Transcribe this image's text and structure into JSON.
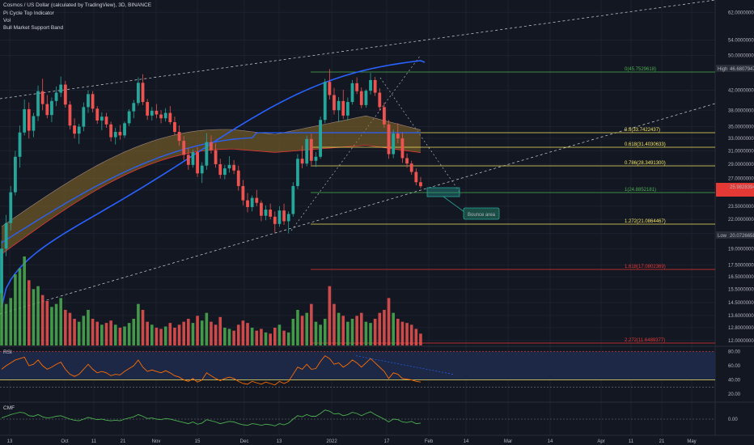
{
  "header": {
    "title": "Cosmos / US Dollar (calculated by TradingView), 3D, BINANCE",
    "indicators": [
      "Pi Cycle Top Indicator",
      "Vol",
      "Bull Market Support Band"
    ]
  },
  "panes": {
    "rsi_label": "RSI",
    "cmf_label": "CMF"
  },
  "colors": {
    "background": "#131722",
    "up": "#26a69a",
    "up_bright": "#4caf50",
    "down": "#ef5350",
    "ma_blue": "#2962ff",
    "band_fill": "#8d6e2a",
    "fib_yellow": "#f5e663",
    "fib_green": "#4caf50",
    "fib_red": "#e53935",
    "rsi_line": "#ff6d00",
    "cmf_line": "#4caf50",
    "rsi_band": "#1e2a4a"
  },
  "chart_data": {
    "type": "candlestick",
    "symbol": "ATOMUSD",
    "y_scale": "log",
    "ylim": [
      11.7,
      66
    ],
    "x_axis_labels": [
      "13",
      "Oct",
      "11",
      "21",
      "Nov",
      "15",
      "Dec",
      "13",
      "2022",
      "17",
      "Feb",
      "14",
      "Mar",
      "14",
      "Apr",
      "11",
      "21",
      "May"
    ],
    "y_axis_labels": [
      "62.0000000",
      "54.0000000",
      "50.0000000",
      "42.0000000",
      "38.0000000",
      "35.0000000",
      "33.0000000",
      "31.0000000",
      "29.0000000",
      "27.0000000",
      "25.5000000",
      "23.5000000",
      "22.0000000",
      "20.5000000",
      "19.0000000",
      "17.5000000",
      "16.5000000",
      "15.5000000",
      "14.5000000",
      "13.6000000",
      "12.8000000",
      "12.0000000"
    ],
    "price_tags": [
      {
        "label": "High",
        "value": "46.6807947"
      },
      {
        "label": "",
        "value": "25.9828394"
      },
      {
        "label": "Low",
        "value": "20.0726658"
      }
    ],
    "fib_levels": [
      {
        "ratio": "0",
        "price": "45.7529618",
        "label": "0(45.7529618)"
      },
      {
        "ratio": "0.5",
        "price": "33.7422437",
        "label": "0.5(33.7422437)"
      },
      {
        "ratio": "0.618",
        "price": "31.4030633",
        "label": "0.618(31.4030633)"
      },
      {
        "ratio": "0.786",
        "price": "28.3491300",
        "label": "0.786(28.3491300)"
      },
      {
        "ratio": "1",
        "price": "24.8852181",
        "label": "1(24.8852181)"
      },
      {
        "ratio": "1.272",
        "price": "21.0864467",
        "label": "1.272(21.0864467)"
      },
      {
        "ratio": "1.618",
        "price": "17.0802369",
        "label": "1.618(17.0802369)"
      },
      {
        "ratio": "2.272",
        "price": "11.6489377",
        "label": "2.272(11.6489377)"
      }
    ],
    "annotation": "Bounce area",
    "rsi_axis_labels": [
      "80.00",
      "60.00",
      "40.00",
      "20.00"
    ],
    "cmf_axis_labels": [
      "0.00"
    ],
    "candles": [
      [
        15.2,
        19.8,
        14.5,
        19.0
      ],
      [
        19.0,
        22.5,
        18.3,
        21.6
      ],
      [
        21.6,
        26.0,
        20.8,
        25.2
      ],
      [
        25.2,
        31.0,
        24.8,
        30.1
      ],
      [
        30.1,
        35.2,
        28.5,
        34.0
      ],
      [
        34.0,
        40.1,
        33.5,
        38.2
      ],
      [
        38.2,
        39.5,
        33.0,
        34.3
      ],
      [
        34.3,
        37.5,
        33.2,
        36.9
      ],
      [
        36.9,
        43.0,
        36.0,
        41.8
      ],
      [
        41.8,
        44.5,
        38.0,
        39.2
      ],
      [
        39.2,
        41.0,
        36.5,
        37.1
      ],
      [
        37.1,
        40.5,
        35.8,
        39.8
      ],
      [
        39.8,
        42.8,
        38.8,
        41.5
      ],
      [
        41.5,
        45.0,
        40.6,
        43.2
      ],
      [
        43.2,
        44.0,
        38.5,
        39.1
      ],
      [
        39.1,
        39.8,
        34.5,
        35.2
      ],
      [
        35.2,
        36.5,
        33.0,
        33.8
      ],
      [
        33.8,
        35.5,
        32.1,
        35.0
      ],
      [
        35.0,
        39.5,
        34.2,
        38.6
      ],
      [
        38.6,
        42.0,
        37.5,
        41.2
      ],
      [
        41.2,
        41.8,
        37.6,
        38.3
      ],
      [
        38.3,
        38.8,
        35.5,
        36.1
      ],
      [
        36.1,
        37.6,
        34.4,
        36.8
      ],
      [
        36.8,
        37.5,
        34.8,
        35.4
      ],
      [
        35.4,
        35.9,
        32.5,
        33.2
      ],
      [
        33.2,
        34.8,
        32.0,
        34.1
      ],
      [
        34.1,
        35.3,
        32.8,
        33.5
      ],
      [
        33.5,
        35.9,
        33.1,
        35.6
      ],
      [
        35.6,
        38.2,
        35.1,
        37.8
      ],
      [
        37.8,
        40.0,
        36.5,
        39.4
      ],
      [
        39.4,
        44.8,
        38.9,
        43.6
      ],
      [
        43.6,
        45.5,
        39.0,
        39.6
      ],
      [
        39.6,
        40.2,
        36.2,
        37.0
      ],
      [
        37.0,
        38.6,
        36.1,
        37.9
      ],
      [
        37.9,
        39.2,
        36.5,
        37.2
      ],
      [
        37.2,
        38.0,
        35.6,
        36.5
      ],
      [
        36.5,
        38.4,
        35.9,
        37.5
      ],
      [
        37.5,
        38.8,
        35.4,
        35.8
      ],
      [
        35.8,
        36.8,
        33.5,
        34.1
      ],
      [
        34.1,
        35.2,
        31.8,
        32.6
      ],
      [
        32.6,
        33.4,
        29.6,
        30.4
      ],
      [
        30.4,
        31.5,
        28.2,
        28.9
      ],
      [
        28.9,
        31.2,
        28.5,
        30.8
      ],
      [
        30.8,
        31.6,
        27.2,
        27.7
      ],
      [
        27.7,
        29.3,
        26.4,
        28.8
      ],
      [
        28.8,
        33.9,
        28.2,
        32.4
      ],
      [
        32.4,
        33.5,
        30.6,
        31.1
      ],
      [
        31.1,
        32.2,
        28.5,
        29.0
      ],
      [
        29.0,
        29.8,
        27.0,
        27.5
      ],
      [
        27.5,
        28.9,
        26.9,
        28.4
      ],
      [
        28.4,
        30.2,
        27.8,
        28.9
      ],
      [
        28.9,
        29.6,
        27.6,
        28.1
      ],
      [
        28.1,
        28.8,
        25.4,
        26.0
      ],
      [
        26.0,
        26.8,
        23.6,
        24.2
      ],
      [
        24.2,
        25.1,
        22.8,
        23.4
      ],
      [
        23.4,
        24.8,
        22.9,
        24.5
      ],
      [
        24.5,
        25.5,
        23.5,
        23.9
      ],
      [
        23.9,
        24.2,
        21.8,
        22.4
      ],
      [
        22.4,
        23.6,
        21.9,
        23.1
      ],
      [
        23.1,
        23.8,
        22.0,
        22.3
      ],
      [
        22.3,
        22.9,
        20.6,
        21.5
      ],
      [
        21.5,
        23.5,
        21.2,
        23.0
      ],
      [
        23.0,
        23.8,
        21.4,
        21.8
      ],
      [
        21.8,
        22.9,
        20.5,
        22.6
      ],
      [
        22.6,
        26.5,
        22.3,
        26.0
      ],
      [
        26.0,
        30.5,
        25.6,
        29.8
      ],
      [
        29.8,
        31.8,
        28.4,
        29.1
      ],
      [
        29.1,
        33.5,
        28.7,
        32.9
      ],
      [
        32.9,
        33.8,
        28.9,
        29.5
      ],
      [
        29.5,
        30.8,
        28.6,
        30.1
      ],
      [
        30.1,
        36.8,
        29.8,
        36.2
      ],
      [
        36.2,
        44.5,
        35.6,
        43.8
      ],
      [
        43.8,
        46.7,
        40.1,
        41.0
      ],
      [
        41.0,
        42.5,
        37.2,
        38.0
      ],
      [
        38.0,
        40.6,
        35.8,
        39.8
      ],
      [
        39.8,
        42.1,
        36.4,
        37.0
      ],
      [
        37.0,
        40.5,
        36.1,
        39.6
      ],
      [
        39.6,
        44.2,
        39.1,
        43.5
      ],
      [
        43.5,
        44.8,
        41.2,
        41.8
      ],
      [
        41.8,
        42.6,
        38.4,
        39.0
      ],
      [
        39.0,
        42.2,
        38.5,
        41.9
      ],
      [
        41.9,
        45.8,
        41.1,
        44.2
      ],
      [
        44.2,
        44.9,
        40.8,
        41.5
      ],
      [
        41.5,
        42.4,
        37.9,
        38.6
      ],
      [
        38.6,
        39.5,
        34.8,
        35.4
      ],
      [
        35.4,
        36.2,
        29.8,
        30.5
      ],
      [
        30.5,
        34.5,
        29.9,
        33.8
      ],
      [
        33.8,
        35.6,
        32.2,
        33.0
      ],
      [
        33.0,
        33.9,
        29.2,
        29.9
      ],
      [
        29.9,
        30.6,
        28.5,
        29.1
      ],
      [
        29.1,
        29.5,
        27.5,
        27.9
      ],
      [
        27.9,
        28.4,
        26.1,
        26.5
      ],
      [
        26.5,
        27.2,
        25.7,
        25.98
      ]
    ],
    "volumes": [
      95,
      70,
      80,
      120,
      130,
      150,
      110,
      95,
      100,
      85,
      75,
      65,
      70,
      80,
      60,
      55,
      45,
      40,
      50,
      60,
      45,
      40,
      35,
      38,
      42,
      35,
      30,
      32,
      38,
      45,
      70,
      60,
      40,
      35,
      30,
      28,
      32,
      38,
      30,
      35,
      40,
      45,
      38,
      50,
      42,
      55,
      40,
      35,
      48,
      30,
      28,
      25,
      35,
      42,
      38,
      30,
      25,
      28,
      22,
      20,
      30,
      35,
      25,
      22,
      45,
      60,
      50,
      55,
      70,
      40,
      35,
      45,
      100,
      70,
      55,
      50,
      40,
      45,
      50,
      55,
      40,
      38,
      45,
      55,
      60,
      80,
      55,
      45,
      40,
      38,
      35,
      28,
      20
    ],
    "rsi": [
      55,
      60,
      64,
      68,
      70,
      72,
      60,
      62,
      68,
      60,
      55,
      58,
      62,
      65,
      55,
      48,
      45,
      48,
      55,
      62,
      55,
      50,
      52,
      50,
      46,
      48,
      47,
      52,
      56,
      60,
      68,
      58,
      52,
      54,
      52,
      50,
      53,
      50,
      46,
      44,
      40,
      38,
      42,
      37,
      40,
      50,
      46,
      42,
      39,
      42,
      44,
      42,
      38,
      35,
      34,
      38,
      36,
      34,
      37,
      35,
      33,
      38,
      35,
      38,
      48,
      58,
      55,
      62,
      55,
      56,
      66,
      74,
      70,
      62,
      64,
      58,
      62,
      68,
      64,
      58,
      64,
      70,
      64,
      58,
      52,
      42,
      50,
      48,
      42,
      41,
      40,
      38,
      37
    ],
    "cmf": [
      0.02,
      0.05,
      0.08,
      0.1,
      0.12,
      0.11,
      0.06,
      0.05,
      0.08,
      0.04,
      0.02,
      0.03,
      0.05,
      0.06,
      0.03,
      0.0,
      -0.02,
      -0.03,
      0.0,
      0.03,
      0.01,
      -0.01,
      0.0,
      -0.02,
      -0.03,
      -0.02,
      -0.03,
      0.0,
      0.02,
      0.04,
      0.08,
      0.05,
      0.01,
      0.02,
      0.0,
      -0.01,
      0.01,
      0.0,
      -0.02,
      -0.04,
      -0.06,
      -0.08,
      -0.05,
      -0.09,
      -0.07,
      -0.01,
      -0.03,
      -0.05,
      -0.08,
      -0.06,
      -0.04,
      -0.05,
      -0.08,
      -0.1,
      -0.11,
      -0.08,
      -0.09,
      -0.11,
      -0.09,
      -0.1,
      -0.12,
      -0.08,
      -0.1,
      -0.07,
      0.0,
      0.06,
      0.04,
      0.08,
      0.05,
      0.05,
      0.1,
      0.16,
      0.14,
      0.09,
      0.1,
      0.06,
      0.08,
      0.12,
      0.1,
      0.06,
      0.1,
      0.13,
      0.08,
      0.04,
      0.0,
      -0.05,
      0.0,
      -0.01,
      -0.05,
      -0.06,
      -0.04,
      -0.08,
      -0.07
    ]
  }
}
